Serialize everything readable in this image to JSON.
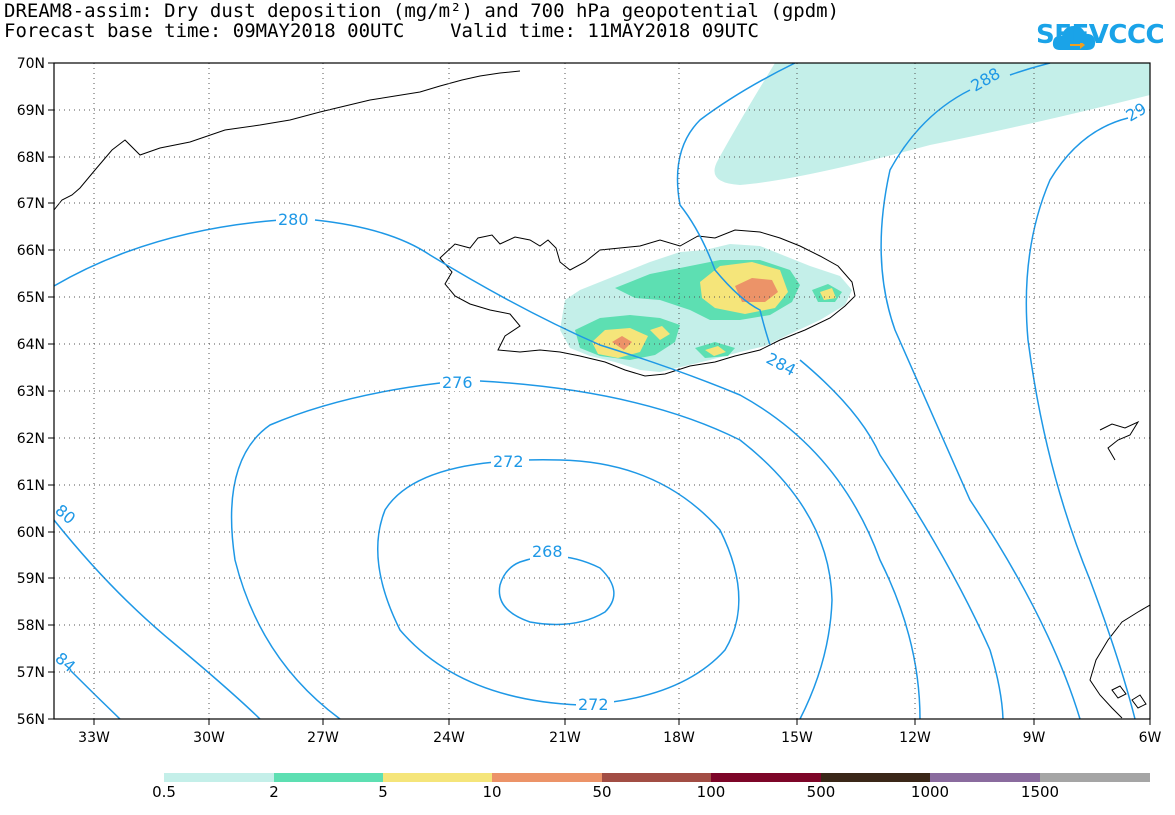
{
  "title": {
    "line1": "DREAM8-assim: Dry dust deposition (mg/m²) and 700 hPa geopotential (gpdm)",
    "line2": "Forecast base time: 09MAY2018 00UTC    Valid time: 11MAY2018 09UTC"
  },
  "logo": {
    "text": "SEEVCCC",
    "icon": "cloud-icon",
    "color": "#1aa3e8"
  },
  "map": {
    "lat_labels": [
      "70N",
      "69N",
      "68N",
      "67N",
      "66N",
      "65N",
      "64N",
      "63N",
      "62N",
      "61N",
      "60N",
      "59N",
      "58N",
      "57N",
      "56N"
    ],
    "lon_labels": [
      "33W",
      "30W",
      "27W",
      "24W",
      "21W",
      "18W",
      "15W",
      "12W",
      "9W",
      "6W"
    ],
    "contour_labels": {
      "c280": "280",
      "c276": "276",
      "c272a": "272",
      "c268": "268",
      "c272b": "272",
      "c284": "284",
      "c288": "288",
      "c29x": "29",
      "c280l": "80",
      "c284l": "84"
    },
    "contour_color": "#1e98e6"
  },
  "colorbar": {
    "labels": [
      "0.5",
      "2",
      "5",
      "10",
      "50",
      "100",
      "500",
      "1000",
      "1500"
    ],
    "colors": [
      "#c4efe9",
      "#5ddfb2",
      "#f5e57a",
      "#ec9368",
      "#a24d44",
      "#7d0528",
      "#3a2718",
      "#8a6b9e",
      "#a5a5a5"
    ]
  }
}
